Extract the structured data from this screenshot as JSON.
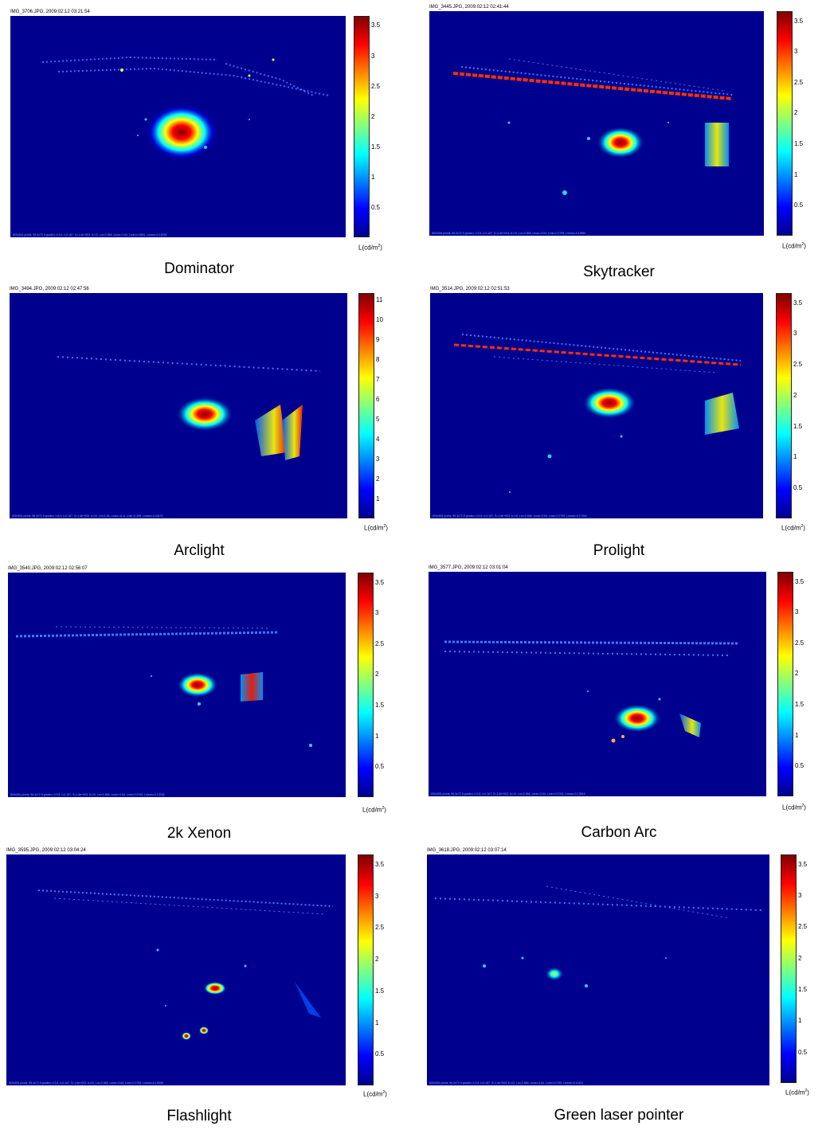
{
  "colorbar_gradient": [
    "#7f0000",
    "#ff0000",
    "#ff8000",
    "#ffff00",
    "#80ff80",
    "#00ffff",
    "#0080ff",
    "#0000ff",
    "#00008f"
  ],
  "unit_label": "L(cd/m",
  "unit_sup": "2",
  "unit_close": ")",
  "panels": [
    {
      "header": "IMG_3706.JPG, 2009:02:12 03:21:54",
      "caption": "Dominator",
      "ticks": [
        "3.5",
        "3",
        "2.5",
        "2",
        "1.5",
        "1",
        "0.5"
      ],
      "footer": "800x534 pixels, 96.3x72.9 graden, f=3.5, t=0.167, S=1.6e+003, b=10, Lm=0.566, Lmax=3.64, Lmin=0.0806, Lmean=0.15262"
    },
    {
      "header": "IMG_3445.JPG, 2009:02:12 02:41:44",
      "caption": "Skytracker",
      "ticks": [
        "3.5",
        "3",
        "2.5",
        "2",
        "1.5",
        "1",
        "0.5"
      ],
      "footer": "800x534 pixels, 96.3x72.9 graden, f=3.5, t=0.167, S=1.6e+003, b=10, Lm=0.566, Lmax=3.64, Lmin=0.0799, Lmean=0.15581"
    },
    {
      "header": "IMG_3494.JPG, 2009:02:12 02:47:56",
      "caption": "Arclight",
      "ticks": [
        "11",
        "10",
        "9",
        "8",
        "7",
        "6",
        "5",
        "4",
        "3",
        "2",
        "1"
      ],
      "footer": "800x534 pixels, 96.3x72.9 graden, f=8.3, t=0.167, S=1.6e+003, b=10, Lm=1.84, Lmax=11.6, Lmin=0.259, Lmean=0.43473"
    },
    {
      "header": "IMG_3514.JPG, 2009:02:12 02:51:53",
      "caption": "Prolight",
      "ticks": [
        "3.5",
        "3",
        "2.5",
        "2",
        "1.5",
        "1",
        "0.5"
      ],
      "footer": "800x534 pixels, 96.3x72.9 graden, f=3.5, t=0.167, S=1.6e+003, b=10, Lm=0.566, Lmax=3.64, Lmin=0.0799, Lmean=0.17464"
    },
    {
      "header": "IMG_3540.JPG, 2009:02:12 02:56:07",
      "caption": "2k Xenon",
      "ticks": [
        "3.5",
        "3",
        "2.5",
        "2",
        "1.5",
        "1",
        "0.5"
      ],
      "footer": "800x534 pixels, 96.3x72.9 graden, f=3.5, t=0.167, S=1.6e+003, b=10, Lm=0.566, Lmax=3.64, Lmin=0.0799, Lmean=0.13784"
    },
    {
      "header": "IMG_3577.JPG, 2009:02:12 03:01:04",
      "caption": "Carbon Arc",
      "ticks": [
        "3.5",
        "3",
        "2.5",
        "2",
        "1.5",
        "1",
        "0.5"
      ],
      "footer": "800x534 pixels, 96.3x72.9 graden, f=3.5, t=0.167, S=1.6e+003, b=10, Lm=0.566, Lmax=3.64, Lmin=0.0799, Lmean=0.13816"
    },
    {
      "header": "IMG_3595.JPG, 2009:02:12 03:04:24",
      "caption": "Flashlight",
      "ticks": [
        "3.5",
        "3",
        "2.5",
        "2",
        "1.5",
        "1",
        "0.5"
      ],
      "footer": "800x534 pixels, 96.3x72.9 graden, f=3.5, t=0.167, S=1.6e+003, b=10, Lm=0.566, Lmax=3.64, Lmin=0.0799, Lmean=0.12538"
    },
    {
      "header": "IMG_3618.JPG, 2009:02:12 03:07:14",
      "caption": "Green laser pointer",
      "ticks": [
        "3.5",
        "3",
        "2.5",
        "2",
        "1.5",
        "1",
        "0.5"
      ],
      "footer": "800x534 pixels, 96.3x72.9 graden, f=3.5, t=0.167, S=1.6e+003, b=10, Lm=0.566, Lmax=3.64, Lmin=0.0799, Lmean=0.11431"
    }
  ]
}
